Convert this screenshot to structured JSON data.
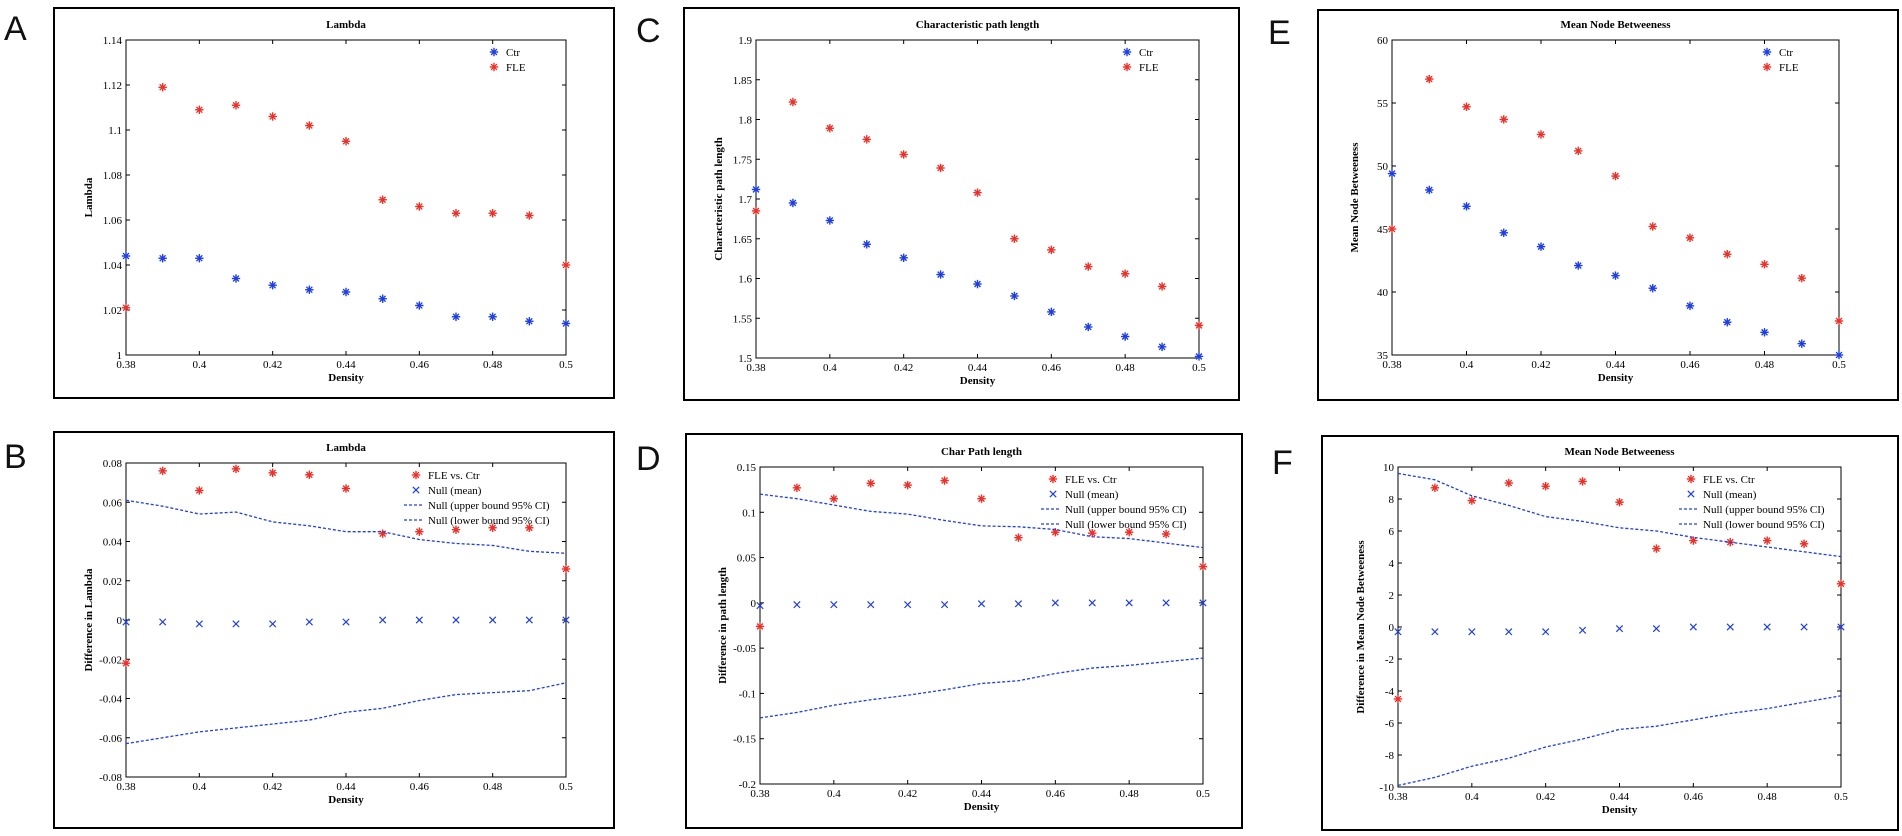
{
  "colors": {
    "ctr": "#1f3fe0",
    "fle": "#e8322a",
    "frame": "#000000"
  },
  "panel_letters": [
    "A",
    "C",
    "E",
    "B",
    "D",
    "F"
  ],
  "chart_data": [
    {
      "id": "A",
      "type": "scatter",
      "title": "Lambda",
      "xlabel": "Density",
      "ylabel": "Lambda",
      "xlim": [
        0.38,
        0.5
      ],
      "ylim": [
        1,
        1.14
      ],
      "xticks": [
        0.38,
        0.4,
        0.42,
        0.44,
        0.46,
        0.48,
        0.5
      ],
      "xtick_labels": [
        "0.38",
        "0.4",
        "0.42",
        "0.44",
        "0.46",
        "0.48",
        "0.5"
      ],
      "yticks": [
        1,
        1.02,
        1.04,
        1.06,
        1.08,
        1.1,
        1.12,
        1.14
      ],
      "ytick_labels": [
        "1",
        "1.02",
        "1.04",
        "1.06",
        "1.08",
        "1.1",
        "1.12",
        "1.14"
      ],
      "x": [
        0.38,
        0.39,
        0.4,
        0.41,
        0.42,
        0.43,
        0.44,
        0.45,
        0.46,
        0.47,
        0.48,
        0.49,
        0.5
      ],
      "series": [
        {
          "name": "Ctr",
          "marker": "star",
          "color": "#1f3fe0",
          "values": [
            1.044,
            1.043,
            1.043,
            1.034,
            1.031,
            1.029,
            1.028,
            1.025,
            1.022,
            1.017,
            1.017,
            1.015,
            1.014
          ]
        },
        {
          "name": "FLE",
          "marker": "star",
          "color": "#e8322a",
          "values": [
            1.021,
            1.119,
            1.109,
            1.111,
            1.106,
            1.102,
            1.095,
            1.069,
            1.066,
            1.063,
            1.063,
            1.062,
            1.04
          ]
        }
      ],
      "legend": [
        "Ctr",
        "FLE"
      ],
      "legend_position": "top-right"
    },
    {
      "id": "C",
      "type": "scatter",
      "title": "Characteristic path length",
      "xlabel": "Density",
      "ylabel": "Characteristic path length",
      "xlim": [
        0.38,
        0.5
      ],
      "ylim": [
        1.5,
        1.9
      ],
      "xticks": [
        0.38,
        0.4,
        0.42,
        0.44,
        0.46,
        0.48,
        0.5
      ],
      "xtick_labels": [
        "0.38",
        "0.4",
        "0.42",
        "0.44",
        "0.46",
        "0.48",
        "0.5"
      ],
      "yticks": [
        1.5,
        1.55,
        1.6,
        1.65,
        1.7,
        1.75,
        1.8,
        1.85,
        1.9
      ],
      "ytick_labels": [
        "1.5",
        "1.55",
        "1.6",
        "1.65",
        "1.7",
        "1.75",
        "1.8",
        "1.85",
        "1.9"
      ],
      "x": [
        0.38,
        0.39,
        0.4,
        0.41,
        0.42,
        0.43,
        0.44,
        0.45,
        0.46,
        0.47,
        0.48,
        0.49,
        0.5
      ],
      "series": [
        {
          "name": "Ctr",
          "marker": "star",
          "color": "#1f3fe0",
          "values": [
            1.712,
            1.695,
            1.673,
            1.643,
            1.626,
            1.605,
            1.593,
            1.578,
            1.558,
            1.539,
            1.527,
            1.514,
            1.502
          ]
        },
        {
          "name": "FLE",
          "marker": "star",
          "color": "#e8322a",
          "values": [
            1.685,
            1.822,
            1.789,
            1.775,
            1.756,
            1.739,
            1.708,
            1.65,
            1.636,
            1.615,
            1.606,
            1.59,
            1.541
          ]
        }
      ],
      "legend": [
        "Ctr",
        "FLE"
      ],
      "legend_position": "top-right"
    },
    {
      "id": "E",
      "type": "scatter",
      "title": "Mean Node Betweeness",
      "xlabel": "Density",
      "ylabel": "Mean Node Betweeness",
      "xlim": [
        0.38,
        0.5
      ],
      "ylim": [
        35,
        60
      ],
      "xticks": [
        0.38,
        0.4,
        0.42,
        0.44,
        0.46,
        0.48,
        0.5
      ],
      "xtick_labels": [
        "0.38",
        "0.4",
        "0.42",
        "0.44",
        "0.46",
        "0.48",
        "0.5"
      ],
      "yticks": [
        35,
        40,
        45,
        50,
        55,
        60
      ],
      "ytick_labels": [
        "35",
        "40",
        "45",
        "50",
        "55",
        "60"
      ],
      "x": [
        0.38,
        0.39,
        0.4,
        0.41,
        0.42,
        0.43,
        0.44,
        0.45,
        0.46,
        0.47,
        0.48,
        0.49,
        0.5
      ],
      "series": [
        {
          "name": "Ctr",
          "marker": "star",
          "color": "#1f3fe0",
          "values": [
            49.4,
            48.1,
            46.8,
            44.7,
            43.6,
            42.1,
            41.3,
            40.3,
            38.9,
            37.6,
            36.8,
            35.9,
            35.0
          ]
        },
        {
          "name": "FLE",
          "marker": "star",
          "color": "#e8322a",
          "values": [
            45.0,
            56.9,
            54.7,
            53.7,
            52.5,
            51.2,
            49.2,
            45.2,
            44.3,
            43.0,
            42.2,
            41.1,
            37.7
          ]
        }
      ],
      "legend": [
        "Ctr",
        "FLE"
      ],
      "legend_position": "top-right"
    },
    {
      "id": "B",
      "type": "scatter",
      "title": "Lambda",
      "xlabel": "Density",
      "ylabel": "Difference in Lambda",
      "xlim": [
        0.38,
        0.5
      ],
      "ylim": [
        -0.08,
        0.08
      ],
      "xticks": [
        0.38,
        0.4,
        0.42,
        0.44,
        0.46,
        0.48,
        0.5
      ],
      "xtick_labels": [
        "0.38",
        "0.4",
        "0.42",
        "0.44",
        "0.46",
        "0.48",
        "0.5"
      ],
      "yticks": [
        -0.08,
        -0.06,
        -0.04,
        -0.02,
        0,
        0.02,
        0.04,
        0.06,
        0.08
      ],
      "ytick_labels": [
        "-0.08",
        "-0.06",
        "-0.04",
        "-0.02",
        "0",
        "0.02",
        "0.04",
        "0.06",
        "0.08"
      ],
      "x": [
        0.38,
        0.39,
        0.4,
        0.41,
        0.42,
        0.43,
        0.44,
        0.45,
        0.46,
        0.47,
        0.48,
        0.49,
        0.5
      ],
      "series": [
        {
          "name": "FLE vs. Ctr",
          "marker": "star",
          "color": "#e8322a",
          "values": [
            -0.022,
            0.076,
            0.066,
            0.077,
            0.075,
            0.074,
            0.067,
            0.044,
            0.045,
            0.046,
            0.047,
            0.047,
            0.026
          ]
        },
        {
          "name": "Null (mean)",
          "marker": "x",
          "color": "#1f3fe0",
          "values": [
            -0.001,
            -0.001,
            -0.002,
            -0.002,
            -0.002,
            -0.001,
            -0.001,
            0.0,
            0.0,
            0.0,
            0.0,
            0.0,
            0.0
          ]
        },
        {
          "name": "Null (upper bound 95% CI)",
          "marker": "dashed",
          "color": "#1f3fe0",
          "values": [
            0.061,
            0.058,
            0.054,
            0.055,
            0.05,
            0.048,
            0.045,
            0.045,
            0.041,
            0.039,
            0.038,
            0.035,
            0.034
          ]
        },
        {
          "name": "Null (lower bound 95% CI)",
          "marker": "dashed",
          "color": "#1f3fe0",
          "values": [
            -0.063,
            -0.06,
            -0.057,
            -0.055,
            -0.053,
            -0.051,
            -0.047,
            -0.045,
            -0.041,
            -0.038,
            -0.037,
            -0.036,
            -0.032
          ]
        }
      ],
      "legend": [
        "FLE vs. Ctr",
        "Null (mean)",
        "Null (upper bound 95% CI)",
        "Null (lower bound 95% CI)"
      ],
      "legend_position": "top-right"
    },
    {
      "id": "D",
      "type": "scatter",
      "title": "Char Path length",
      "xlabel": "Density",
      "ylabel": "Difference in path length",
      "xlim": [
        0.38,
        0.5
      ],
      "ylim": [
        -0.2,
        0.15
      ],
      "xticks": [
        0.38,
        0.4,
        0.42,
        0.44,
        0.46,
        0.48,
        0.5
      ],
      "xtick_labels": [
        "0.38",
        "0.4",
        "0.42",
        "0.44",
        "0.46",
        "0.48",
        "0.5"
      ],
      "yticks": [
        -0.2,
        -0.15,
        -0.1,
        -0.05,
        0,
        0.05,
        0.1,
        0.15
      ],
      "ytick_labels": [
        "-0.2",
        "-0.15",
        "-0.1",
        "-0.05",
        "0",
        "0.05",
        "0.1",
        "0.15"
      ],
      "x": [
        0.38,
        0.39,
        0.4,
        0.41,
        0.42,
        0.43,
        0.44,
        0.45,
        0.46,
        0.47,
        0.48,
        0.49,
        0.5
      ],
      "series": [
        {
          "name": "FLE vs. Ctr",
          "marker": "star",
          "color": "#e8322a",
          "values": [
            -0.026,
            0.127,
            0.115,
            0.132,
            0.13,
            0.135,
            0.115,
            0.072,
            0.078,
            0.077,
            0.078,
            0.076,
            0.04
          ]
        },
        {
          "name": "Null (mean)",
          "marker": "x",
          "color": "#1f3fe0",
          "values": [
            -0.003,
            -0.002,
            -0.002,
            -0.002,
            -0.002,
            -0.002,
            -0.001,
            -0.001,
            0.0,
            0.0,
            0.0,
            0.0,
            0.0
          ]
        },
        {
          "name": "Null (upper bound 95% CI)",
          "marker": "dashed",
          "color": "#1f3fe0",
          "values": [
            0.12,
            0.115,
            0.108,
            0.101,
            0.098,
            0.091,
            0.085,
            0.084,
            0.081,
            0.073,
            0.071,
            0.066,
            0.061
          ]
        },
        {
          "name": "Null (lower bound 95% CI)",
          "marker": "dashed",
          "color": "#1f3fe0",
          "values": [
            -0.127,
            -0.121,
            -0.113,
            -0.107,
            -0.102,
            -0.096,
            -0.089,
            -0.086,
            -0.078,
            -0.072,
            -0.069,
            -0.065,
            -0.061
          ]
        }
      ],
      "legend": [
        "FLE vs. Ctr",
        "Null (mean)",
        "Null (upper bound 95% CI)",
        "Null (lower bound 95% CI)"
      ],
      "legend_position": "top-right"
    },
    {
      "id": "F",
      "type": "scatter",
      "title": "Mean Node Betweeness",
      "xlabel": "Density",
      "ylabel": "Difference in Mean Node Betweeness",
      "xlim": [
        0.38,
        0.5
      ],
      "ylim": [
        -10,
        10
      ],
      "xticks": [
        0.38,
        0.4,
        0.42,
        0.44,
        0.46,
        0.48,
        0.5
      ],
      "xtick_labels": [
        "0.38",
        "0.4",
        "0.42",
        "0.44",
        "0.46",
        "0.48",
        "0.5"
      ],
      "yticks": [
        -10,
        -8,
        -6,
        -4,
        -2,
        0,
        2,
        4,
        6,
        8,
        10
      ],
      "ytick_labels": [
        "-10",
        "-8",
        "-6",
        "-4",
        "-2",
        "0",
        "2",
        "4",
        "6",
        "8",
        "10"
      ],
      "x": [
        0.38,
        0.39,
        0.4,
        0.41,
        0.42,
        0.43,
        0.44,
        0.45,
        0.46,
        0.47,
        0.48,
        0.49,
        0.5
      ],
      "series": [
        {
          "name": "FLE vs. Ctr",
          "marker": "star",
          "color": "#e8322a",
          "values": [
            -4.5,
            8.7,
            7.9,
            9.0,
            8.8,
            9.1,
            7.8,
            4.9,
            5.4,
            5.3,
            5.4,
            5.2,
            2.7
          ]
        },
        {
          "name": "Null (mean)",
          "marker": "x",
          "color": "#1f3fe0",
          "values": [
            -0.3,
            -0.3,
            -0.3,
            -0.3,
            -0.3,
            -0.2,
            -0.1,
            -0.1,
            0.0,
            0.0,
            0.0,
            0.0,
            0.0
          ]
        },
        {
          "name": "Null (upper bound 95% CI)",
          "marker": "dashed",
          "color": "#1f3fe0",
          "values": [
            9.6,
            9.2,
            8.2,
            7.6,
            6.9,
            6.6,
            6.2,
            6.0,
            5.6,
            5.3,
            5.0,
            4.7,
            4.4
          ]
        },
        {
          "name": "Null (lower bound 95% CI)",
          "marker": "dashed",
          "color": "#1f3fe0",
          "values": [
            -9.9,
            -9.4,
            -8.7,
            -8.2,
            -7.5,
            -7.0,
            -6.4,
            -6.2,
            -5.8,
            -5.4,
            -5.1,
            -4.7,
            -4.3
          ]
        }
      ],
      "legend": [
        "FLE vs. Ctr",
        "Null (mean)",
        "Null (upper bound 95% CI)",
        "Null (lower bound 95% CI)"
      ],
      "legend_position": "top-right"
    }
  ]
}
